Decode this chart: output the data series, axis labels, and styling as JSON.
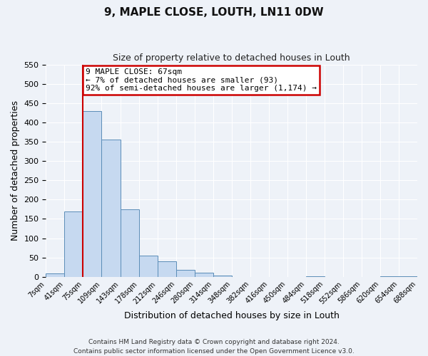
{
  "title": "9, MAPLE CLOSE, LOUTH, LN11 0DW",
  "subtitle": "Size of property relative to detached houses in Louth",
  "xlabel": "Distribution of detached houses by size in Louth",
  "ylabel": "Number of detached properties",
  "bin_labels": [
    "7sqm",
    "41sqm",
    "75sqm",
    "109sqm",
    "143sqm",
    "178sqm",
    "212sqm",
    "246sqm",
    "280sqm",
    "314sqm",
    "348sqm",
    "382sqm",
    "416sqm",
    "450sqm",
    "484sqm",
    "518sqm",
    "552sqm",
    "586sqm",
    "620sqm",
    "654sqm",
    "688sqm"
  ],
  "bar_values": [
    8,
    170,
    430,
    355,
    175,
    55,
    40,
    18,
    10,
    3,
    0,
    0,
    0,
    0,
    2,
    0,
    0,
    0,
    2,
    2
  ],
  "bar_color": "#c6d9f0",
  "bar_edge_color": "#5b8db8",
  "ylim": [
    0,
    550
  ],
  "yticks": [
    0,
    50,
    100,
    150,
    200,
    250,
    300,
    350,
    400,
    450,
    500,
    550
  ],
  "vline_x_bin": 2,
  "vline_color": "#cc0000",
  "annotation_text": "9 MAPLE CLOSE: 67sqm\n← 7% of detached houses are smaller (93)\n92% of semi-detached houses are larger (1,174) →",
  "annotation_box_color": "#ffffff",
  "annotation_box_edge_color": "#cc0000",
  "footer_line1": "Contains HM Land Registry data © Crown copyright and database right 2024.",
  "footer_line2": "Contains public sector information licensed under the Open Government Licence v3.0.",
  "background_color": "#eef2f8",
  "plot_bg_color": "#eef2f8",
  "grid_color": "#ffffff"
}
